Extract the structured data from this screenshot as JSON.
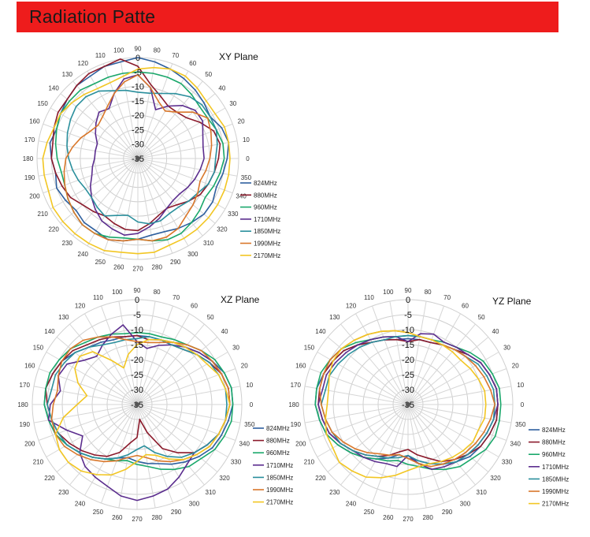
{
  "header": {
    "title": "Radiation Patte",
    "color": "#ee1c1c"
  },
  "chart_data": [
    {
      "type": "radar",
      "title": "XY Plane",
      "angles_deg": [
        0,
        10,
        20,
        30,
        40,
        50,
        60,
        70,
        80,
        90,
        100,
        110,
        120,
        130,
        140,
        150,
        160,
        170,
        180,
        190,
        200,
        210,
        220,
        230,
        240,
        250,
        260,
        270,
        280,
        290,
        300,
        310,
        320,
        330,
        340,
        350
      ],
      "radial_range": [
        -35,
        0
      ],
      "radial_ticks": [
        0,
        -5,
        -10,
        -15,
        -20,
        -25,
        -30,
        -35
      ],
      "series": [
        {
          "name": "824MHz",
          "color": "#2e5f9e",
          "values": [
            -4,
            -3,
            -4,
            -6,
            -5,
            -4,
            -3,
            -2,
            -1,
            0,
            -1,
            -1,
            -2,
            -2,
            -3,
            -4,
            -5,
            -4,
            -5,
            -6,
            -5,
            -6,
            -7,
            -6,
            -6,
            -5,
            -6,
            -7,
            -8,
            -8,
            -7,
            -6,
            -5,
            -5,
            -6,
            -5
          ]
        },
        {
          "name": "880MHz",
          "color": "#8b1a2b",
          "values": [
            -7,
            -6,
            -7,
            -10,
            -13,
            -14,
            -14,
            -12,
            -9,
            -3,
            0,
            -1,
            -1,
            -2,
            -3,
            -3,
            -4,
            -5,
            -5,
            -6,
            -7,
            -8,
            -10,
            -11,
            -12,
            -11,
            -10,
            -10,
            -12,
            -14,
            -15,
            -14,
            -12,
            -10,
            -9,
            -8
          ]
        },
        {
          "name": "960MHz",
          "color": "#1aa86b",
          "values": [
            -5,
            -5,
            -6,
            -7,
            -7,
            -6,
            -5,
            -5,
            -5,
            -5,
            -5,
            -5,
            -5,
            -4,
            -4,
            -4,
            -5,
            -6,
            -7,
            -8,
            -8,
            -7,
            -6,
            -5,
            -5,
            -6,
            -7,
            -7,
            -6,
            -5,
            -5,
            -6,
            -7,
            -8,
            -7,
            -6
          ]
        },
        {
          "name": "1710MHz",
          "color": "#5b2d8e",
          "values": [
            -12,
            -12,
            -11,
            -9,
            -9,
            -11,
            -14,
            -17,
            -10,
            -6,
            -7,
            -11,
            -15,
            -14,
            -16,
            -18,
            -20,
            -20,
            -20,
            -19,
            -18,
            -16,
            -14,
            -12,
            -10,
            -9,
            -8,
            -9,
            -11,
            -13,
            -15,
            -16,
            -16,
            -15,
            -14,
            -13
          ]
        },
        {
          "name": "1850MHz",
          "color": "#2a8f9c",
          "values": [
            -8,
            -7,
            -6,
            -6,
            -6,
            -7,
            -9,
            -11,
            -12,
            -12,
            -11,
            -10,
            -8,
            -7,
            -7,
            -8,
            -9,
            -10,
            -11,
            -12,
            -13,
            -14,
            -14,
            -13,
            -12,
            -14,
            -15,
            -13,
            -12,
            -12,
            -13,
            -13,
            -12,
            -11,
            -9,
            -8
          ]
        },
        {
          "name": "1990MHz",
          "color": "#d9772a",
          "values": [
            -10,
            -9,
            -8,
            -7,
            -10,
            -14,
            -16,
            -14,
            -10,
            -6,
            -8,
            -11,
            -14,
            -16,
            -17,
            -16,
            -14,
            -12,
            -10,
            -9,
            -8,
            -7,
            -6,
            -5,
            -5,
            -5,
            -6,
            -7,
            -6,
            -6,
            -7,
            -9,
            -10,
            -11,
            -12,
            -11
          ]
        },
        {
          "name": "2170MHz",
          "color": "#f2c623",
          "values": [
            -3,
            -3,
            -3,
            -4,
            -4,
            -3,
            -2,
            -2,
            -3,
            -4,
            -6,
            -7,
            -7,
            -6,
            -5,
            -4,
            -4,
            -3,
            -2,
            -2,
            -2,
            -1,
            -1,
            -1,
            -1,
            -1,
            -2,
            -2,
            -2,
            -3,
            -3,
            -3,
            -3,
            -3,
            -3,
            -3
          ]
        }
      ]
    },
    {
      "type": "radar",
      "title": "XZ Plane",
      "angles_deg": [
        0,
        10,
        20,
        30,
        40,
        50,
        60,
        70,
        80,
        90,
        100,
        110,
        120,
        130,
        140,
        150,
        160,
        170,
        180,
        190,
        200,
        210,
        220,
        230,
        240,
        250,
        260,
        270,
        280,
        290,
        300,
        310,
        320,
        330,
        340,
        350
      ],
      "radial_range": [
        -35,
        0
      ],
      "radial_ticks": [
        0,
        -5,
        -10,
        -15,
        -20,
        -25,
        -30,
        -35
      ],
      "series": [
        {
          "name": "824MHz",
          "color": "#2e5f9e",
          "values": [
            -3,
            -3,
            -4,
            -6,
            -8,
            -10,
            -11,
            -12,
            -12,
            -12,
            -12,
            -12,
            -11,
            -10,
            -8,
            -6,
            -5,
            -4,
            -4,
            -5,
            -6,
            -8,
            -10,
            -12,
            -14,
            -16,
            -17,
            -16,
            -15,
            -14,
            -12,
            -10,
            -8,
            -6,
            -5,
            -4
          ]
        },
        {
          "name": "880MHz",
          "color": "#8b1a2b",
          "values": [
            -4,
            -4,
            -5,
            -7,
            -9,
            -11,
            -12,
            -12,
            -13,
            -12,
            -12,
            -11,
            -10,
            -9,
            -7,
            -6,
            -5,
            -4,
            -5,
            -6,
            -7,
            -9,
            -11,
            -13,
            -15,
            -18,
            -22,
            -24,
            -30,
            -25,
            -18,
            -14,
            -10,
            -8,
            -6,
            -5
          ]
        },
        {
          "name": "960MHz",
          "color": "#1aa86b",
          "values": [
            -3,
            -3,
            -4,
            -5,
            -7,
            -9,
            -10,
            -11,
            -11,
            -11,
            -11,
            -10,
            -9,
            -8,
            -6,
            -5,
            -4,
            -4,
            -4,
            -5,
            -6,
            -8,
            -10,
            -12,
            -14,
            -15,
            -16,
            -15,
            -14,
            -12,
            -10,
            -8,
            -7,
            -5,
            -4,
            -3
          ]
        },
        {
          "name": "1710MHz",
          "color": "#5b2d8e",
          "values": [
            -4,
            -4,
            -5,
            -6,
            -8,
            -10,
            -12,
            -14,
            -16,
            -14,
            -8,
            -10,
            -12,
            -14,
            -12,
            -8,
            -7,
            -9,
            -6,
            -5,
            -10,
            -14,
            -10,
            -8,
            -7,
            -6,
            -4,
            -3,
            -4,
            -5,
            -7,
            -9,
            -10,
            -8,
            -6,
            -5
          ]
        },
        {
          "name": "1850MHz",
          "color": "#2a8f9c",
          "values": [
            -5,
            -5,
            -6,
            -7,
            -9,
            -11,
            -12,
            -12,
            -12,
            -13,
            -13,
            -13,
            -12,
            -10,
            -8,
            -7,
            -6,
            -6,
            -5,
            -6,
            -7,
            -8,
            -10,
            -12,
            -14,
            -16,
            -18,
            -20,
            -21,
            -18,
            -15,
            -12,
            -10,
            -8,
            -6,
            -5
          ]
        },
        {
          "name": "1990MHz",
          "color": "#d9772a",
          "values": [
            -4,
            -4,
            -5,
            -6,
            -7,
            -9,
            -11,
            -13,
            -14,
            -14,
            -13,
            -11,
            -9,
            -7,
            -6,
            -6,
            -7,
            -8,
            -7,
            -6,
            -6,
            -7,
            -9,
            -11,
            -13,
            -15,
            -17,
            -18,
            -17,
            -15,
            -13,
            -11,
            -9,
            -7,
            -6,
            -5
          ]
        },
        {
          "name": "2170MHz",
          "color": "#f2c623",
          "values": [
            -4,
            -5,
            -6,
            -8,
            -9,
            -10,
            -11,
            -12,
            -13,
            -15,
            -18,
            -22,
            -18,
            -12,
            -10,
            -11,
            -14,
            -18,
            -15,
            -10,
            -6,
            -5,
            -5,
            -6,
            -8,
            -10,
            -13,
            -16,
            -18,
            -17,
            -14,
            -11,
            -9,
            -7,
            -6,
            -5
          ]
        }
      ]
    },
    {
      "type": "radar",
      "title": "YZ Plane",
      "angles_deg": [
        0,
        10,
        20,
        30,
        40,
        50,
        60,
        70,
        80,
        90,
        100,
        110,
        120,
        130,
        140,
        150,
        160,
        170,
        180,
        190,
        200,
        210,
        220,
        230,
        240,
        250,
        260,
        270,
        280,
        290,
        300,
        310,
        320,
        330,
        340,
        350
      ],
      "radial_range": [
        -35,
        0
      ],
      "radial_ticks": [
        0,
        -5,
        -10,
        -15,
        -20,
        -25,
        -30,
        -35
      ],
      "series": [
        {
          "name": "824MHz",
          "color": "#2e5f9e",
          "values": [
            -5,
            -5,
            -6,
            -7,
            -9,
            -11,
            -12,
            -13,
            -13,
            -13,
            -13,
            -12,
            -11,
            -9,
            -7,
            -6,
            -5,
            -4,
            -4,
            -5,
            -6,
            -8,
            -10,
            -12,
            -14,
            -16,
            -18,
            -17,
            -16,
            -14,
            -12,
            -10,
            -8,
            -7,
            -6,
            -5
          ]
        },
        {
          "name": "880MHz",
          "color": "#8b1a2b",
          "values": [
            -5,
            -5,
            -6,
            -7,
            -9,
            -11,
            -12,
            -13,
            -13,
            -14,
            -13,
            -12,
            -11,
            -9,
            -7,
            -6,
            -5,
            -5,
            -5,
            -6,
            -7,
            -9,
            -11,
            -13,
            -15,
            -17,
            -19,
            -20,
            -18,
            -16,
            -13,
            -11,
            -9,
            -7,
            -6,
            -5
          ]
        },
        {
          "name": "960MHz",
          "color": "#1aa86b",
          "values": [
            -4,
            -4,
            -5,
            -6,
            -8,
            -10,
            -11,
            -12,
            -12,
            -12,
            -12,
            -11,
            -10,
            -8,
            -6,
            -5,
            -4,
            -4,
            -4,
            -5,
            -6,
            -8,
            -10,
            -12,
            -14,
            -15,
            -16,
            -15,
            -14,
            -12,
            -10,
            -8,
            -7,
            -5,
            -4,
            -4
          ]
        },
        {
          "name": "1710MHz",
          "color": "#5b2d8e",
          "values": [
            -5,
            -5,
            -6,
            -7,
            -9,
            -10,
            -11,
            -10,
            -11,
            -14,
            -12,
            -11,
            -10,
            -9,
            -8,
            -7,
            -6,
            -6,
            -5,
            -6,
            -7,
            -9,
            -11,
            -12,
            -13,
            -14,
            -14,
            -18,
            -15,
            -12,
            -11,
            -10,
            -9,
            -8,
            -7,
            -6
          ]
        },
        {
          "name": "1850MHz",
          "color": "#2a8f9c",
          "values": [
            -6,
            -6,
            -7,
            -8,
            -10,
            -11,
            -12,
            -12,
            -12,
            -12,
            -12,
            -12,
            -11,
            -10,
            -9,
            -8,
            -7,
            -7,
            -6,
            -7,
            -8,
            -9,
            -11,
            -13,
            -15,
            -16,
            -17,
            -18,
            -16,
            -14,
            -12,
            -10,
            -9,
            -8,
            -7,
            -6
          ]
        },
        {
          "name": "1990MHz",
          "color": "#d9772a",
          "values": [
            -6,
            -7,
            -8,
            -9,
            -10,
            -11,
            -12,
            -12,
            -12,
            -11,
            -10,
            -9,
            -8,
            -7,
            -6,
            -5,
            -5,
            -5,
            -6,
            -7,
            -8,
            -10,
            -12,
            -14,
            -16,
            -17,
            -18,
            -17,
            -15,
            -13,
            -12,
            -11,
            -10,
            -9,
            -8,
            -7
          ]
        },
        {
          "name": "2170MHz",
          "color": "#f2c623",
          "values": [
            -9,
            -9,
            -10,
            -11,
            -12,
            -12,
            -12,
            -12,
            -12,
            -11,
            -10,
            -9,
            -8,
            -7,
            -6,
            -6,
            -7,
            -8,
            -8,
            -7,
            -6,
            -6,
            -5,
            -6,
            -7,
            -9,
            -11,
            -13,
            -14,
            -14,
            -13,
            -12,
            -11,
            -10,
            -10,
            -9
          ]
        }
      ]
    }
  ]
}
